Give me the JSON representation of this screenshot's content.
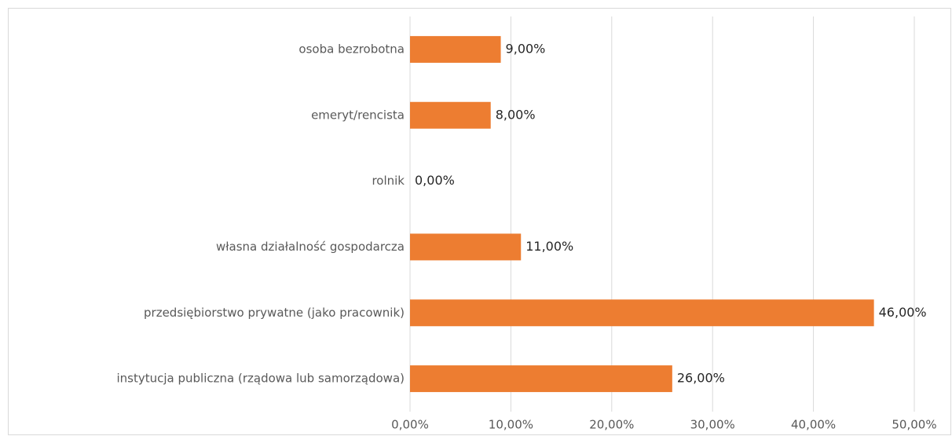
{
  "chart_data": {
    "type": "bar",
    "orientation": "horizontal",
    "categories": [
      "osoba bezrobotna",
      "emeryt/rencista",
      "rolnik",
      "własna działalność gospodarcza",
      "przedsiębiorstwo prywatne (jako pracownik)",
      "instytucja publiczna (rządowa lub samorządowa)"
    ],
    "values": [
      9,
      8,
      0,
      11,
      46,
      26
    ],
    "value_labels": [
      "9,00%",
      "8,00%",
      "0,00%",
      "11,00%",
      "46,00%",
      "26,00%"
    ],
    "color": "#ed7d31",
    "xlim": [
      0,
      50
    ],
    "xticks": [
      {
        "value": 0,
        "label": "0,00%"
      },
      {
        "value": 10,
        "label": "10,00%"
      },
      {
        "value": 20,
        "label": "20,00%"
      },
      {
        "value": 30,
        "label": "30,00%"
      },
      {
        "value": 40,
        "label": "40,00%"
      },
      {
        "value": 50,
        "label": "50,00%"
      }
    ],
    "grid": true
  }
}
